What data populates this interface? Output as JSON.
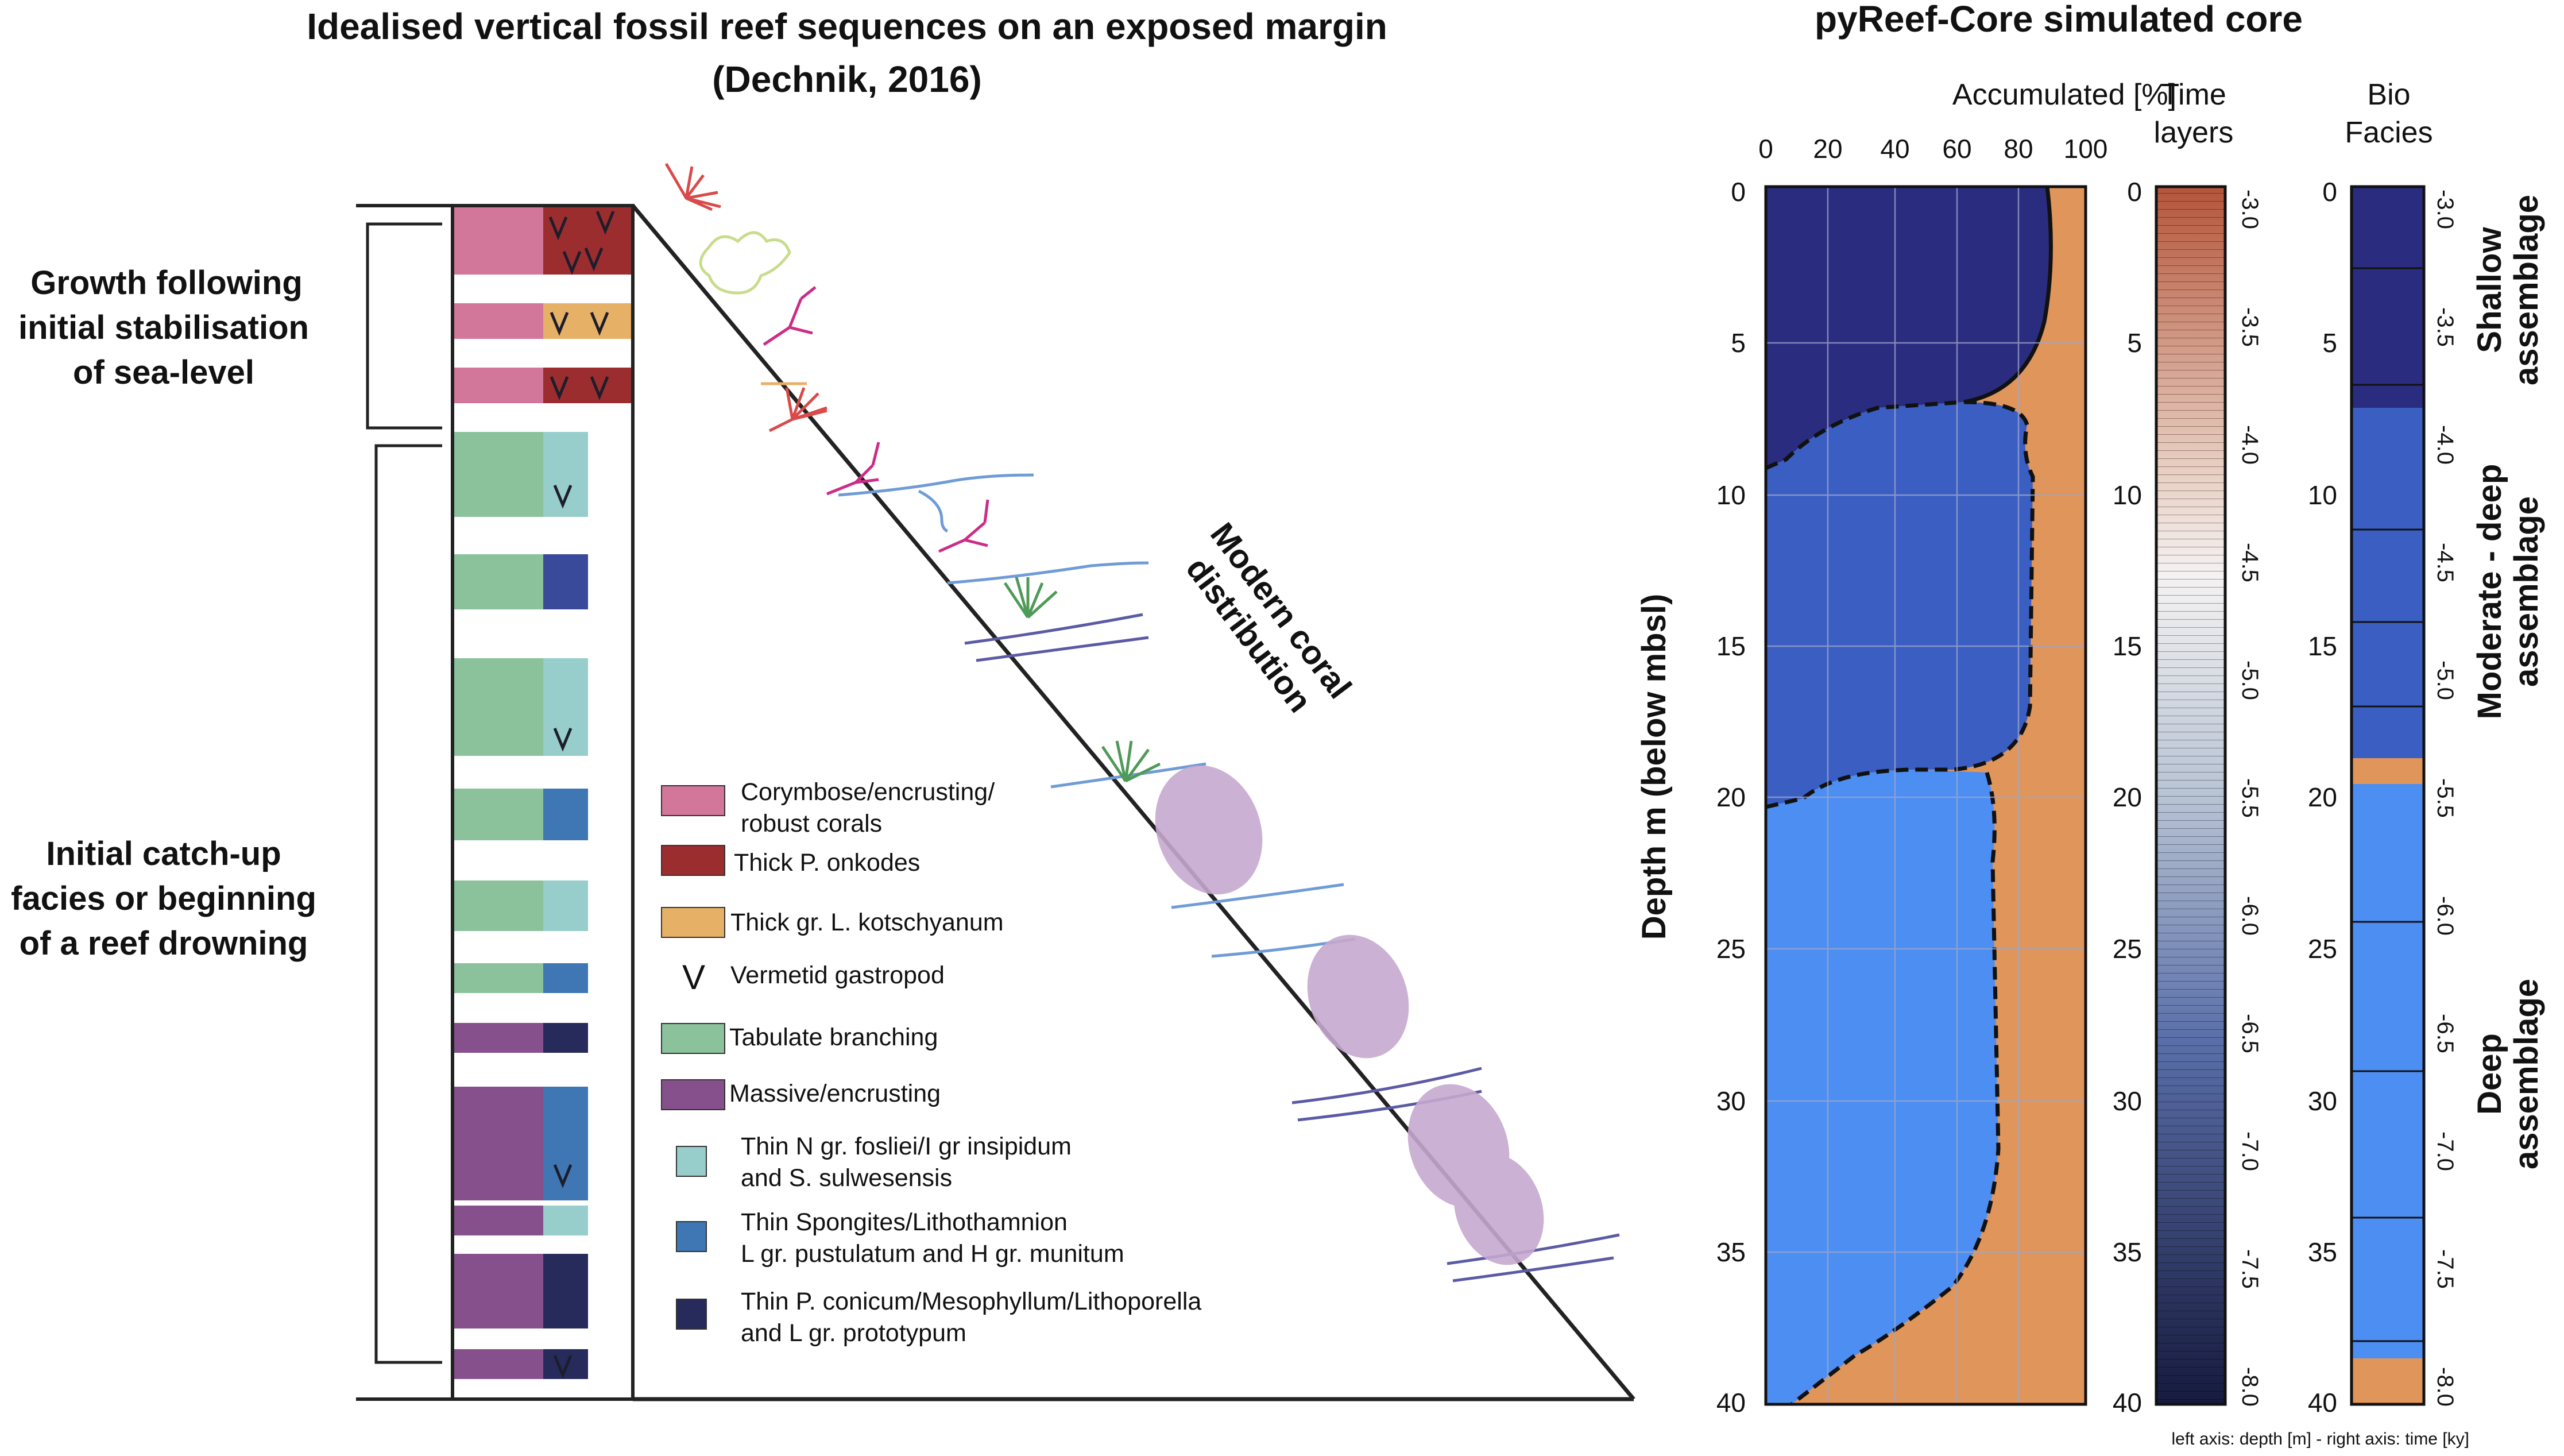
{
  "left": {
    "title_line1": "Idealised vertical fossil reef sequences on an exposed margin",
    "title_line2": "(Dechnik, 2016)",
    "bracket_top": [
      "Growth following",
      "initial stabilisation",
      "of sea-level"
    ],
    "bracket_bottom": [
      "Initial catch-up",
      "facies or beginning",
      "of a reef drowning"
    ],
    "modern_label": [
      "Modern coral",
      "distribution"
    ],
    "legend": [
      {
        "color": "#d2769a",
        "lines": [
          "Corymbose/encrusting/",
          "robust corals"
        ]
      },
      {
        "color": "#9b2d2f",
        "lines": [
          "Thick P. onkodes"
        ]
      },
      {
        "color": "#e7b067",
        "lines": [
          "Thick gr. L. kotschyanum"
        ]
      },
      {
        "symbol": "V",
        "lines": [
          "Vermetid gastropod"
        ]
      },
      {
        "color": "#8bc29b",
        "lines": [
          "Tabulate branching"
        ]
      },
      {
        "color": "#86508d",
        "lines": [
          "Massive/encrusting"
        ]
      },
      {
        "color": "#97cdca",
        "lines": [
          "Thin N gr. fosliei/I gr insipidum",
          "and S. sulwesensis"
        ]
      },
      {
        "color": "#3f77b4",
        "lines": [
          "Thin Spongites/Lithothamnion",
          "L gr. pustulatum and H gr. munitum"
        ]
      },
      {
        "color": "#262b5c",
        "lines": [
          "Thin P. conicum/Mesophyllum/Lithoporella",
          "and L gr. prototypum"
        ]
      }
    ]
  },
  "right": {
    "title": "pyReef-Core simulated core",
    "accum_header": "Accumulated [%]",
    "accum_ticks": [
      "0",
      "20",
      "40",
      "60",
      "80",
      "100"
    ],
    "depth_label": "Depth m (below mbsl)",
    "depth_ticks": [
      "0",
      "5",
      "10",
      "15",
      "20",
      "25",
      "30",
      "35",
      "40"
    ],
    "time_header": [
      "Time",
      "layers"
    ],
    "bio_header": [
      "Bio",
      "Facies"
    ],
    "time_ticks": [
      "-3.0",
      "-3.5",
      "-4.0",
      "-4.5",
      "-5.0",
      "-5.5",
      "-6.0",
      "-6.5",
      "-7.0",
      "-7.5",
      "-8.0"
    ],
    "assemblages": [
      {
        "lines": [
          "Shallow",
          "assemblage"
        ]
      },
      {
        "lines": [
          "Moderate - deep",
          "assemblage"
        ]
      },
      {
        "lines": [
          "Deep",
          "assemblage"
        ]
      }
    ],
    "footnote": "left axis: depth [m] - right axis: time [ky]",
    "colors": {
      "shallow": "#2a2c80",
      "moderate": "#3a5ec2",
      "deep": "#4d8ef2",
      "sand": "#e0955a"
    }
  }
}
